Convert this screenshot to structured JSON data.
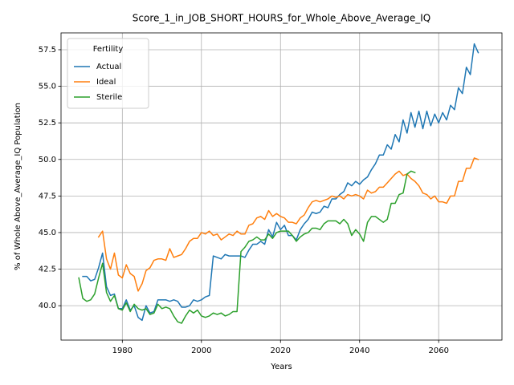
{
  "chart_data": {
    "type": "line",
    "title": "Score_1_in_JOB_SHORT_HOURS_for_Whole_Above_Average_IQ",
    "xlabel": "Years",
    "ylabel": "% of Whole Above_Average_IQ Population",
    "x": [
      1969,
      1970,
      1971,
      1972,
      1973,
      1974,
      1975,
      1976,
      1977,
      1978,
      1979,
      1980,
      1981,
      1982,
      1983,
      1984,
      1985,
      1986,
      1987,
      1988,
      1989,
      1990,
      1991,
      1992,
      1993,
      1994,
      1995,
      1996,
      1997,
      1998,
      1999,
      2000,
      2001,
      2002,
      2003,
      2004,
      2005,
      2006,
      2007,
      2008,
      2009,
      2010,
      2011,
      2012,
      2013,
      2014,
      2015,
      2016,
      2017,
      2018,
      2019,
      2020,
      2021,
      2022,
      2023,
      2024,
      2025,
      2026,
      2027,
      2028,
      2029,
      2030,
      2031,
      2032,
      2033,
      2034,
      2035,
      2036,
      2037,
      2038,
      2039,
      2040,
      2041,
      2042,
      2043,
      2044,
      2045,
      2046,
      2047,
      2048,
      2049,
      2050,
      2051,
      2052,
      2053,
      2054,
      2055,
      2056,
      2057,
      2058,
      2059,
      2060,
      2061,
      2062,
      2063,
      2064,
      2065,
      2066,
      2067,
      2068,
      2069,
      2070
    ],
    "series": [
      {
        "name": "Actual",
        "color": "#1f77b4",
        "values": [
          null,
          42.0,
          42.0,
          41.7,
          41.8,
          42.6,
          43.6,
          41.3,
          40.7,
          40.8,
          39.8,
          39.8,
          40.4,
          39.7,
          40.0,
          39.2,
          39.0,
          40.0,
          39.5,
          39.6,
          40.4,
          40.4,
          40.4,
          40.3,
          40.4,
          40.3,
          39.9,
          39.9,
          40.0,
          40.4,
          40.3,
          40.4,
          40.6,
          40.7,
          43.4,
          43.3,
          43.2,
          43.5,
          43.4,
          43.4,
          43.4,
          43.4,
          43.3,
          43.8,
          44.2,
          44.2,
          44.4,
          44.2,
          45.2,
          44.7,
          45.7,
          45.2,
          45.5,
          44.8,
          44.8,
          44.5,
          45.2,
          45.6,
          45.9,
          46.4,
          46.3,
          46.4,
          46.8,
          46.7,
          47.3,
          47.3,
          47.6,
          47.8,
          48.4,
          48.2,
          48.5,
          48.3,
          48.6,
          48.8,
          49.3,
          49.7,
          50.3,
          50.3,
          51.0,
          50.7,
          51.7,
          51.2,
          52.7,
          51.8,
          53.2,
          52.2,
          53.3,
          52.1,
          53.3,
          52.3,
          53.1,
          52.5,
          53.2,
          52.7,
          53.7,
          53.4,
          54.9,
          54.5,
          56.3,
          55.8,
          57.9,
          57.3
        ]
      },
      {
        "name": "Ideal",
        "color": "#ff7f0e",
        "values": [
          null,
          null,
          null,
          null,
          null,
          44.7,
          45.1,
          43.2,
          42.5,
          43.6,
          42.1,
          41.9,
          42.8,
          42.2,
          42.0,
          41.0,
          41.5,
          42.4,
          42.6,
          43.1,
          43.2,
          43.2,
          43.1,
          43.9,
          43.3,
          43.4,
          43.5,
          43.9,
          44.4,
          44.6,
          44.6,
          45.0,
          44.9,
          45.1,
          44.8,
          44.9,
          44.5,
          44.7,
          44.9,
          44.8,
          45.1,
          44.9,
          44.9,
          45.5,
          45.6,
          46.0,
          46.1,
          45.9,
          46.5,
          46.1,
          46.3,
          46.1,
          46.0,
          45.7,
          45.7,
          45.6,
          46.0,
          46.2,
          46.7,
          47.1,
          47.2,
          47.1,
          47.2,
          47.3,
          47.5,
          47.4,
          47.5,
          47.3,
          47.6,
          47.5,
          47.6,
          47.5,
          47.3,
          47.9,
          47.7,
          47.8,
          48.1,
          48.1,
          48.4,
          48.7,
          49.0,
          49.2,
          48.9,
          49.0,
          48.7,
          48.5,
          48.2,
          47.7,
          47.6,
          47.3,
          47.5,
          47.1,
          47.1,
          47.0,
          47.5,
          47.5,
          48.5,
          48.5,
          49.4,
          49.4,
          50.1,
          50.0
        ]
      },
      {
        "name": "Sterile",
        "color": "#2ca02c",
        "values": [
          41.9,
          40.5,
          40.3,
          40.4,
          40.8,
          41.9,
          42.9,
          40.9,
          40.3,
          40.7,
          39.8,
          39.7,
          40.2,
          39.6,
          40.1,
          39.8,
          39.7,
          39.8,
          39.4,
          39.5,
          40.1,
          39.8,
          39.9,
          39.8,
          39.3,
          38.9,
          38.8,
          39.3,
          39.7,
          39.5,
          39.7,
          39.3,
          39.2,
          39.3,
          39.5,
          39.4,
          39.5,
          39.3,
          39.4,
          39.6,
          39.6,
          43.7,
          44.0,
          44.4,
          44.5,
          44.7,
          44.5,
          44.5,
          44.9,
          44.6,
          45.0,
          45.1,
          45.1,
          45.1,
          44.8,
          44.4,
          44.7,
          44.9,
          45.0,
          45.3,
          45.3,
          45.2,
          45.6,
          45.8,
          45.8,
          45.8,
          45.6,
          45.9,
          45.6,
          44.8,
          45.2,
          44.9,
          44.4,
          45.7,
          46.1,
          46.1,
          45.9,
          45.7,
          45.9,
          47.0,
          47.0,
          47.6,
          47.7,
          49.0,
          49.2,
          49.1,
          null,
          null,
          null,
          null,
          null,
          null,
          null,
          null,
          null,
          null,
          null,
          null,
          null,
          null,
          null,
          null
        ]
      }
    ],
    "xlim": [
      1964.5,
      2076
    ],
    "xticks": [
      1980,
      2000,
      2020,
      2040,
      2060
    ],
    "ylim": [
      37.65,
      58.65
    ],
    "yticks": [
      {
        "value": 40,
        "label": "40.0"
      },
      42.5,
      {
        "value": 45,
        "label": "45.0"
      },
      47.5,
      {
        "value": 50,
        "label": "50.0"
      },
      52.5,
      {
        "value": 55,
        "label": "55.0"
      },
      57.5
    ],
    "grid": true,
    "legend": {
      "title": "Fertility",
      "loc": "upper left"
    }
  }
}
